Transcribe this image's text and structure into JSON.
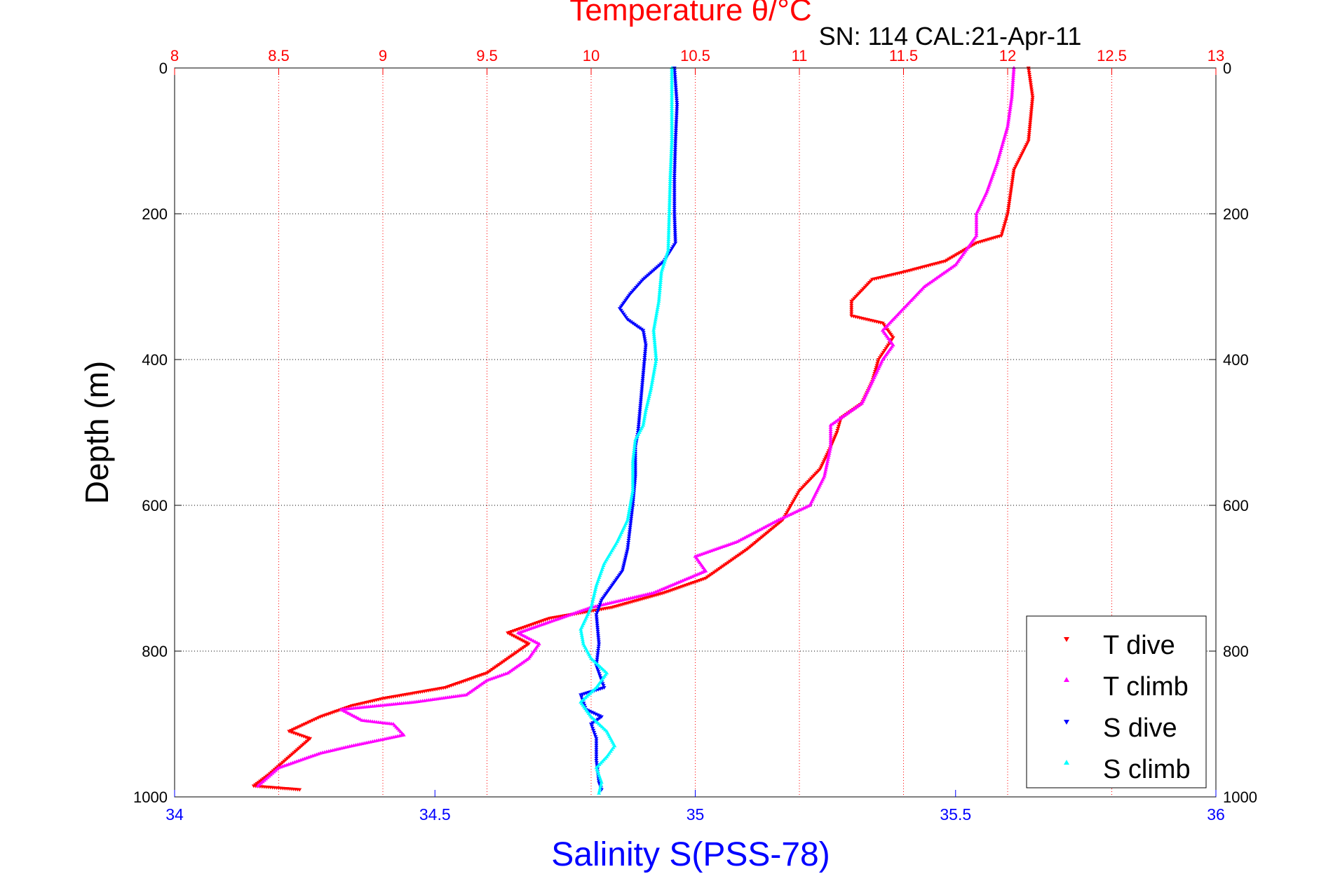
{
  "figure": {
    "top_title": "Temperature θ/°C",
    "subtitle": "SN: 114  CAL:21-Apr-11",
    "ylabel": "Depth (m)",
    "xlabel": "Salinity S(PSS-78)"
  },
  "legend": {
    "items": [
      {
        "label": "T dive",
        "color": "#ff0000",
        "marker": "triangle-down"
      },
      {
        "label": "T climb",
        "color": "#ff00ff",
        "marker": "triangle-up"
      },
      {
        "label": "S dive",
        "color": "#0000ff",
        "marker": "triangle-down"
      },
      {
        "label": "S climb",
        "color": "#00ffff",
        "marker": "triangle-up"
      }
    ]
  },
  "colors": {
    "temperature_axis": "#ff0000",
    "salinity_axis": "#0000ff",
    "depth_axis": "#000000"
  },
  "chart_data": {
    "type": "scatter",
    "title": "Temperature θ/°C",
    "subtitle": "SN: 114  CAL:21-Apr-11",
    "xlabel_bottom": "Salinity S(PSS-78)",
    "xlabel_top": "Temperature θ/°C",
    "ylabel": "Depth (m)",
    "x_bottom_lim": [
      34,
      36
    ],
    "x_top_lim": [
      8,
      13
    ],
    "ylim": [
      0,
      1000
    ],
    "y_reversed": true,
    "grid": true,
    "legend_position": "bottom-right",
    "x_bottom_ticks": [
      "34",
      "34.5",
      "35",
      "35.5",
      "36"
    ],
    "x_top_ticks": [
      "8",
      "8.5",
      "9",
      "9.5",
      "10",
      "10.5",
      "11",
      "11.5",
      "12",
      "12.5",
      "13"
    ],
    "y_ticks": [
      "0",
      "200",
      "400",
      "600",
      "800",
      "1000"
    ],
    "series": [
      {
        "name": "T dive",
        "axis": "temperature",
        "color": "#ff0000",
        "marker": "triangle-down",
        "points": [
          [
            12.1,
            0
          ],
          [
            12.12,
            40
          ],
          [
            12.1,
            100
          ],
          [
            12.03,
            140
          ],
          [
            12.0,
            200
          ],
          [
            11.97,
            230
          ],
          [
            11.85,
            240
          ],
          [
            11.7,
            265
          ],
          [
            11.5,
            280
          ],
          [
            11.35,
            290
          ],
          [
            11.25,
            320
          ],
          [
            11.25,
            340
          ],
          [
            11.4,
            350
          ],
          [
            11.45,
            370
          ],
          [
            11.38,
            400
          ],
          [
            11.35,
            430
          ],
          [
            11.3,
            460
          ],
          [
            11.2,
            480
          ],
          [
            11.18,
            500
          ],
          [
            11.15,
            520
          ],
          [
            11.1,
            550
          ],
          [
            11.0,
            580
          ],
          [
            10.92,
            620
          ],
          [
            10.75,
            660
          ],
          [
            10.55,
            700
          ],
          [
            10.35,
            720
          ],
          [
            10.1,
            740
          ],
          [
            9.8,
            755
          ],
          [
            9.6,
            775
          ],
          [
            9.7,
            790
          ],
          [
            9.6,
            810
          ],
          [
            9.5,
            830
          ],
          [
            9.3,
            850
          ],
          [
            9.0,
            865
          ],
          [
            8.85,
            875
          ],
          [
            8.7,
            890
          ],
          [
            8.55,
            910
          ],
          [
            8.65,
            920
          ],
          [
            8.55,
            945
          ],
          [
            8.45,
            970
          ],
          [
            8.38,
            985
          ],
          [
            8.6,
            990
          ]
        ]
      },
      {
        "name": "T climb",
        "axis": "temperature",
        "color": "#ff00ff",
        "marker": "triangle-up",
        "points": [
          [
            12.03,
            0
          ],
          [
            12.02,
            40
          ],
          [
            12.0,
            80
          ],
          [
            11.95,
            130
          ],
          [
            11.9,
            170
          ],
          [
            11.85,
            200
          ],
          [
            11.85,
            230
          ],
          [
            11.75,
            270
          ],
          [
            11.6,
            300
          ],
          [
            11.5,
            330
          ],
          [
            11.4,
            360
          ],
          [
            11.45,
            380
          ],
          [
            11.4,
            400
          ],
          [
            11.35,
            430
          ],
          [
            11.3,
            460
          ],
          [
            11.15,
            490
          ],
          [
            11.15,
            520
          ],
          [
            11.12,
            560
          ],
          [
            11.05,
            600
          ],
          [
            10.9,
            620
          ],
          [
            10.7,
            650
          ],
          [
            10.5,
            670
          ],
          [
            10.55,
            690
          ],
          [
            10.3,
            720
          ],
          [
            10.0,
            740
          ],
          [
            9.8,
            760
          ],
          [
            9.65,
            775
          ],
          [
            9.75,
            790
          ],
          [
            9.7,
            810
          ],
          [
            9.6,
            830
          ],
          [
            9.5,
            840
          ],
          [
            9.4,
            860
          ],
          [
            9.15,
            870
          ],
          [
            8.8,
            880
          ],
          [
            8.9,
            895
          ],
          [
            9.05,
            900
          ],
          [
            9.1,
            915
          ],
          [
            8.85,
            930
          ],
          [
            8.7,
            940
          ],
          [
            8.5,
            960
          ],
          [
            8.4,
            985
          ]
        ]
      },
      {
        "name": "S dive",
        "axis": "salinity",
        "color": "#0000ff",
        "marker": "triangle-down",
        "points": [
          [
            34.96,
            0
          ],
          [
            34.965,
            50
          ],
          [
            34.962,
            100
          ],
          [
            34.96,
            150
          ],
          [
            34.96,
            200
          ],
          [
            34.962,
            240
          ],
          [
            34.94,
            265
          ],
          [
            34.9,
            290
          ],
          [
            34.875,
            310
          ],
          [
            34.855,
            330
          ],
          [
            34.87,
            345
          ],
          [
            34.9,
            360
          ],
          [
            34.905,
            380
          ],
          [
            34.9,
            420
          ],
          [
            34.895,
            460
          ],
          [
            34.89,
            500
          ],
          [
            34.885,
            520
          ],
          [
            34.885,
            560
          ],
          [
            34.88,
            600
          ],
          [
            34.875,
            630
          ],
          [
            34.87,
            660
          ],
          [
            34.86,
            690
          ],
          [
            34.84,
            710
          ],
          [
            34.82,
            730
          ],
          [
            34.81,
            750
          ],
          [
            34.815,
            790
          ],
          [
            34.81,
            820
          ],
          [
            34.825,
            850
          ],
          [
            34.78,
            860
          ],
          [
            34.79,
            880
          ],
          [
            34.82,
            890
          ],
          [
            34.8,
            900
          ],
          [
            34.81,
            920
          ],
          [
            34.81,
            950
          ],
          [
            34.815,
            980
          ],
          [
            34.82,
            990
          ]
        ]
      },
      {
        "name": "S climb",
        "axis": "salinity",
        "color": "#00ffff",
        "marker": "triangle-up",
        "points": [
          [
            34.955,
            0
          ],
          [
            34.955,
            50
          ],
          [
            34.955,
            100
          ],
          [
            34.952,
            150
          ],
          [
            34.95,
            200
          ],
          [
            34.948,
            250
          ],
          [
            34.935,
            280
          ],
          [
            34.93,
            320
          ],
          [
            34.92,
            360
          ],
          [
            34.925,
            400
          ],
          [
            34.915,
            440
          ],
          [
            34.905,
            470
          ],
          [
            34.9,
            490
          ],
          [
            34.885,
            510
          ],
          [
            34.88,
            540
          ],
          [
            34.88,
            580
          ],
          [
            34.87,
            620
          ],
          [
            34.85,
            650
          ],
          [
            34.825,
            680
          ],
          [
            34.81,
            710
          ],
          [
            34.8,
            740
          ],
          [
            34.78,
            770
          ],
          [
            34.785,
            790
          ],
          [
            34.8,
            810
          ],
          [
            34.83,
            830
          ],
          [
            34.81,
            850
          ],
          [
            34.78,
            870
          ],
          [
            34.8,
            890
          ],
          [
            34.83,
            910
          ],
          [
            34.845,
            930
          ],
          [
            34.83,
            945
          ],
          [
            34.81,
            960
          ],
          [
            34.82,
            980
          ],
          [
            34.815,
            995
          ]
        ]
      }
    ]
  }
}
